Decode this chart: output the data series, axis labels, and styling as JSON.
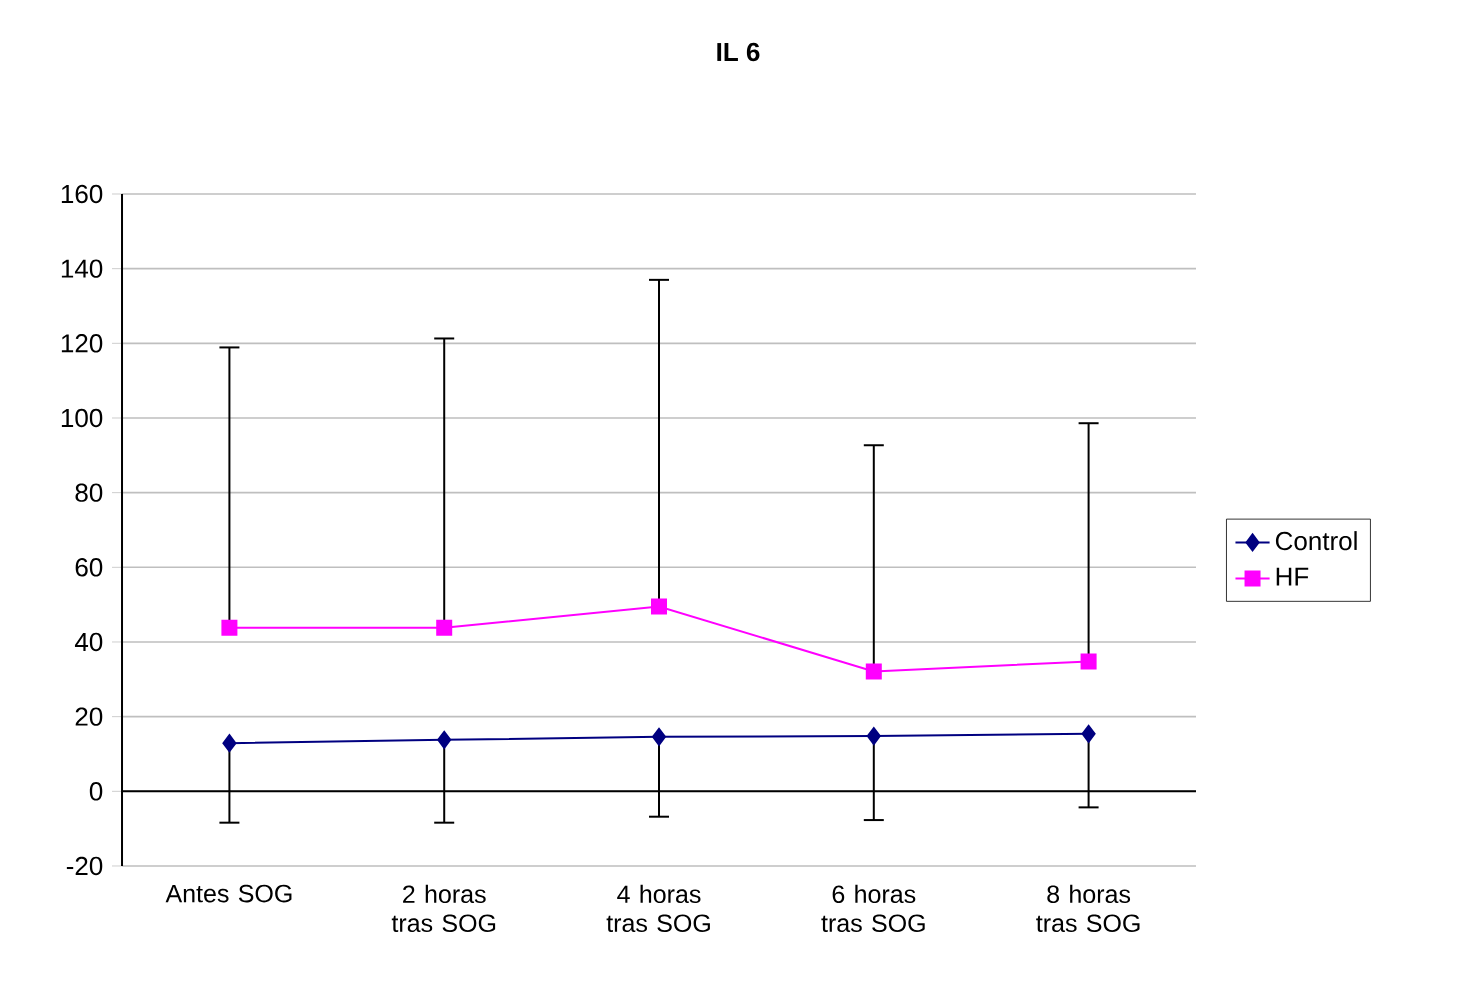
{
  "chart_data": {
    "type": "line",
    "title": "IL 6",
    "categories": [
      "Antes SOG",
      "2 horas tras SOG",
      "4 horas tras SOG",
      "6 horas tras SOG",
      "8 horas tras SOG"
    ],
    "series": [
      {
        "name": "Control",
        "color": "#000080",
        "marker": "diamond",
        "values": [
          12.9,
          13.8,
          14.6,
          14.8,
          15.4
        ],
        "errors": [
          [
            -8.4,
            12.9
          ],
          [
            -8.4,
            13.8
          ],
          [
            -6.8,
            14.6
          ],
          [
            -7.7,
            14.8
          ],
          [
            -4.3,
            15.4
          ]
        ]
      },
      {
        "name": "HF",
        "color": "#ff00ff",
        "marker": "square",
        "values": [
          43.8,
          43.8,
          49.5,
          32.1,
          34.8
        ],
        "errors": [
          [
            43.8,
            118.9
          ],
          [
            43.8,
            121.3
          ],
          [
            49.5,
            137
          ],
          [
            32.1,
            92.7
          ],
          [
            34.8,
            98.6
          ]
        ]
      }
    ],
    "ylim": [
      -20,
      160
    ],
    "yticks": [
      -20,
      0,
      20,
      40,
      60,
      80,
      100,
      120,
      140,
      160
    ],
    "grid": "y",
    "legend": "right",
    "line_style": "solid"
  }
}
